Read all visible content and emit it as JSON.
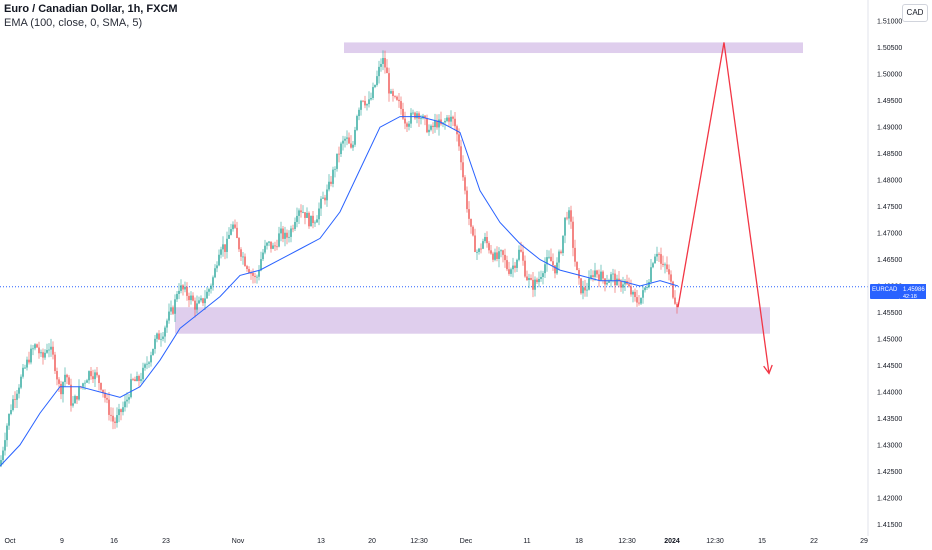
{
  "header": {
    "title": "Euro / Canadian Dollar, 1h, FXCM",
    "indicator": "EMA (100, close, 0, SMA, 5)"
  },
  "currency": "CAD",
  "price_tag": {
    "symbol": "EURCAD",
    "price": "1.45986",
    "countdown": "42:18"
  },
  "colors": {
    "up": "#26a69a",
    "down": "#ef5350",
    "ema": "#2962ff",
    "zone": "#d9c6ea",
    "arrow": "#f23645",
    "price_line": "#2962ff"
  },
  "chart_data": {
    "type": "candlestick",
    "symbol": "EURCAD",
    "timeframe": "1h",
    "ylim": [
      1.4145,
      1.5125
    ],
    "y_ticks": [
      1.415,
      1.42,
      1.425,
      1.43,
      1.435,
      1.44,
      1.445,
      1.45,
      1.455,
      1.46,
      1.465,
      1.47,
      1.475,
      1.48,
      1.485,
      1.49,
      1.495,
      1.5,
      1.505,
      1.51
    ],
    "y_tick_labels": [
      "1.41500",
      "1.42000",
      "1.42500",
      "1.43000",
      "1.43500",
      "1.44000",
      "1.44500",
      "1.45000",
      "1.45500",
      "1.46000",
      "1.46500",
      "1.47000",
      "1.47500",
      "1.48000",
      "1.48500",
      "1.49000",
      "1.49500",
      "1.50000",
      "1.50500",
      "1.51000"
    ],
    "x_ticks": [
      {
        "label": "Oct",
        "bold": false
      },
      {
        "label": "9",
        "bold": false
      },
      {
        "label": "16",
        "bold": false
      },
      {
        "label": "23",
        "bold": false
      },
      {
        "label": "Nov",
        "bold": false
      },
      {
        "label": "13",
        "bold": false
      },
      {
        "label": "20",
        "bold": false
      },
      {
        "label": "12:30",
        "bold": false
      },
      {
        "label": "Dec",
        "bold": false
      },
      {
        "label": "11",
        "bold": false
      },
      {
        "label": "18",
        "bold": false
      },
      {
        "label": "12:30",
        "bold": false
      },
      {
        "label": "2024",
        "bold": true
      },
      {
        "label": "12:30",
        "bold": false
      },
      {
        "label": "15",
        "bold": false
      },
      {
        "label": "22",
        "bold": false
      },
      {
        "label": "29",
        "bold": false
      }
    ],
    "price_path": [
      [
        0,
        1.426
      ],
      [
        6,
        1.433
      ],
      [
        12,
        1.438
      ],
      [
        18,
        1.441
      ],
      [
        24,
        1.444
      ],
      [
        30,
        1.447
      ],
      [
        36,
        1.449
      ],
      [
        42,
        1.446
      ],
      [
        48,
        1.449
      ],
      [
        54,
        1.446
      ],
      [
        60,
        1.44
      ],
      [
        66,
        1.444
      ],
      [
        72,
        1.437
      ],
      [
        78,
        1.44
      ],
      [
        84,
        1.442
      ],
      [
        90,
        1.444
      ],
      [
        96,
        1.443
      ],
      [
        102,
        1.441
      ],
      [
        108,
        1.437
      ],
      [
        114,
        1.434
      ],
      [
        120,
        1.436
      ],
      [
        126,
        1.438
      ],
      [
        132,
        1.442
      ],
      [
        138,
        1.442
      ],
      [
        144,
        1.444
      ],
      [
        150,
        1.447
      ],
      [
        156,
        1.45
      ],
      [
        162,
        1.451
      ],
      [
        168,
        1.454
      ],
      [
        174,
        1.456
      ],
      [
        178,
        1.46
      ],
      [
        184,
        1.459
      ],
      [
        190,
        1.458
      ],
      [
        196,
        1.456
      ],
      [
        202,
        1.457
      ],
      [
        208,
        1.459
      ],
      [
        214,
        1.462
      ],
      [
        220,
        1.468
      ],
      [
        226,
        1.467
      ],
      [
        232,
        1.472
      ],
      [
        238,
        1.468
      ],
      [
        244,
        1.465
      ],
      [
        250,
        1.463
      ],
      [
        256,
        1.461
      ],
      [
        262,
        1.466
      ],
      [
        268,
        1.468
      ],
      [
        274,
        1.467
      ],
      [
        280,
        1.47
      ],
      [
        286,
        1.469
      ],
      [
        292,
        1.471
      ],
      [
        298,
        1.475
      ],
      [
        304,
        1.474
      ],
      [
        310,
        1.472
      ],
      [
        316,
        1.473
      ],
      [
        322,
        1.476
      ],
      [
        328,
        1.478
      ],
      [
        334,
        1.482
      ],
      [
        340,
        1.486
      ],
      [
        346,
        1.488
      ],
      [
        352,
        1.485
      ],
      [
        356,
        1.492
      ],
      [
        362,
        1.496
      ],
      [
        368,
        1.494
      ],
      [
        372,
        1.496
      ],
      [
        378,
        1.5
      ],
      [
        382,
        1.503
      ],
      [
        386,
        1.501
      ],
      [
        390,
        1.496
      ],
      [
        394,
        1.495
      ],
      [
        400,
        1.494
      ],
      [
        406,
        1.491
      ],
      [
        412,
        1.492
      ],
      [
        418,
        1.493
      ],
      [
        424,
        1.491
      ],
      [
        430,
        1.489
      ],
      [
        436,
        1.491
      ],
      [
        442,
        1.49
      ],
      [
        448,
        1.492
      ],
      [
        454,
        1.491
      ],
      [
        460,
        1.486
      ],
      [
        464,
        1.479
      ],
      [
        468,
        1.474
      ],
      [
        472,
        1.469
      ],
      [
        478,
        1.466
      ],
      [
        484,
        1.469
      ],
      [
        490,
        1.467
      ],
      [
        496,
        1.465
      ],
      [
        502,
        1.466
      ],
      [
        508,
        1.463
      ],
      [
        514,
        1.464
      ],
      [
        520,
        1.467
      ],
      [
        526,
        1.462
      ],
      [
        532,
        1.46
      ],
      [
        538,
        1.461
      ],
      [
        544,
        1.464
      ],
      [
        550,
        1.465
      ],
      [
        556,
        1.463
      ],
      [
        562,
        1.468
      ],
      [
        566,
        1.474
      ],
      [
        570,
        1.473
      ],
      [
        574,
        1.466
      ],
      [
        578,
        1.461
      ],
      [
        582,
        1.459
      ],
      [
        588,
        1.46
      ],
      [
        594,
        1.463
      ],
      [
        600,
        1.462
      ],
      [
        606,
        1.461
      ],
      [
        612,
        1.462
      ],
      [
        618,
        1.46
      ],
      [
        624,
        1.461
      ],
      [
        630,
        1.459
      ],
      [
        636,
        1.457
      ],
      [
        642,
        1.458
      ],
      [
        648,
        1.461
      ],
      [
        654,
        1.466
      ],
      [
        658,
        1.467
      ],
      [
        662,
        1.463
      ],
      [
        666,
        1.464
      ],
      [
        670,
        1.461
      ],
      [
        674,
        1.458
      ],
      [
        678,
        1.4565
      ]
    ],
    "ema_path": [
      [
        0,
        1.426
      ],
      [
        20,
        1.43
      ],
      [
        40,
        1.436
      ],
      [
        60,
        1.441
      ],
      [
        80,
        1.441
      ],
      [
        100,
        1.44
      ],
      [
        120,
        1.439
      ],
      [
        140,
        1.441
      ],
      [
        160,
        1.446
      ],
      [
        180,
        1.452
      ],
      [
        200,
        1.455
      ],
      [
        220,
        1.458
      ],
      [
        240,
        1.462
      ],
      [
        260,
        1.463
      ],
      [
        280,
        1.465
      ],
      [
        300,
        1.467
      ],
      [
        320,
        1.469
      ],
      [
        340,
        1.474
      ],
      [
        360,
        1.482
      ],
      [
        380,
        1.49
      ],
      [
        400,
        1.492
      ],
      [
        420,
        1.492
      ],
      [
        440,
        1.491
      ],
      [
        460,
        1.489
      ],
      [
        480,
        1.478
      ],
      [
        500,
        1.472
      ],
      [
        520,
        1.468
      ],
      [
        540,
        1.465
      ],
      [
        560,
        1.463
      ],
      [
        580,
        1.462
      ],
      [
        600,
        1.461
      ],
      [
        620,
        1.461
      ],
      [
        640,
        1.46
      ],
      [
        660,
        1.461
      ],
      [
        678,
        1.46
      ]
    ],
    "resistance_zone": {
      "x_from": 344,
      "x_to": 803,
      "y_from": 1.504,
      "y_to": 1.506
    },
    "support_zone": {
      "x_from": 175,
      "x_to": 770,
      "y_from": 1.451,
      "y_to": 1.456
    },
    "projection": [
      [
        678,
        1.456
      ],
      [
        724,
        1.506
      ],
      [
        769,
        1.4435
      ]
    ],
    "current_price": 1.45986
  }
}
